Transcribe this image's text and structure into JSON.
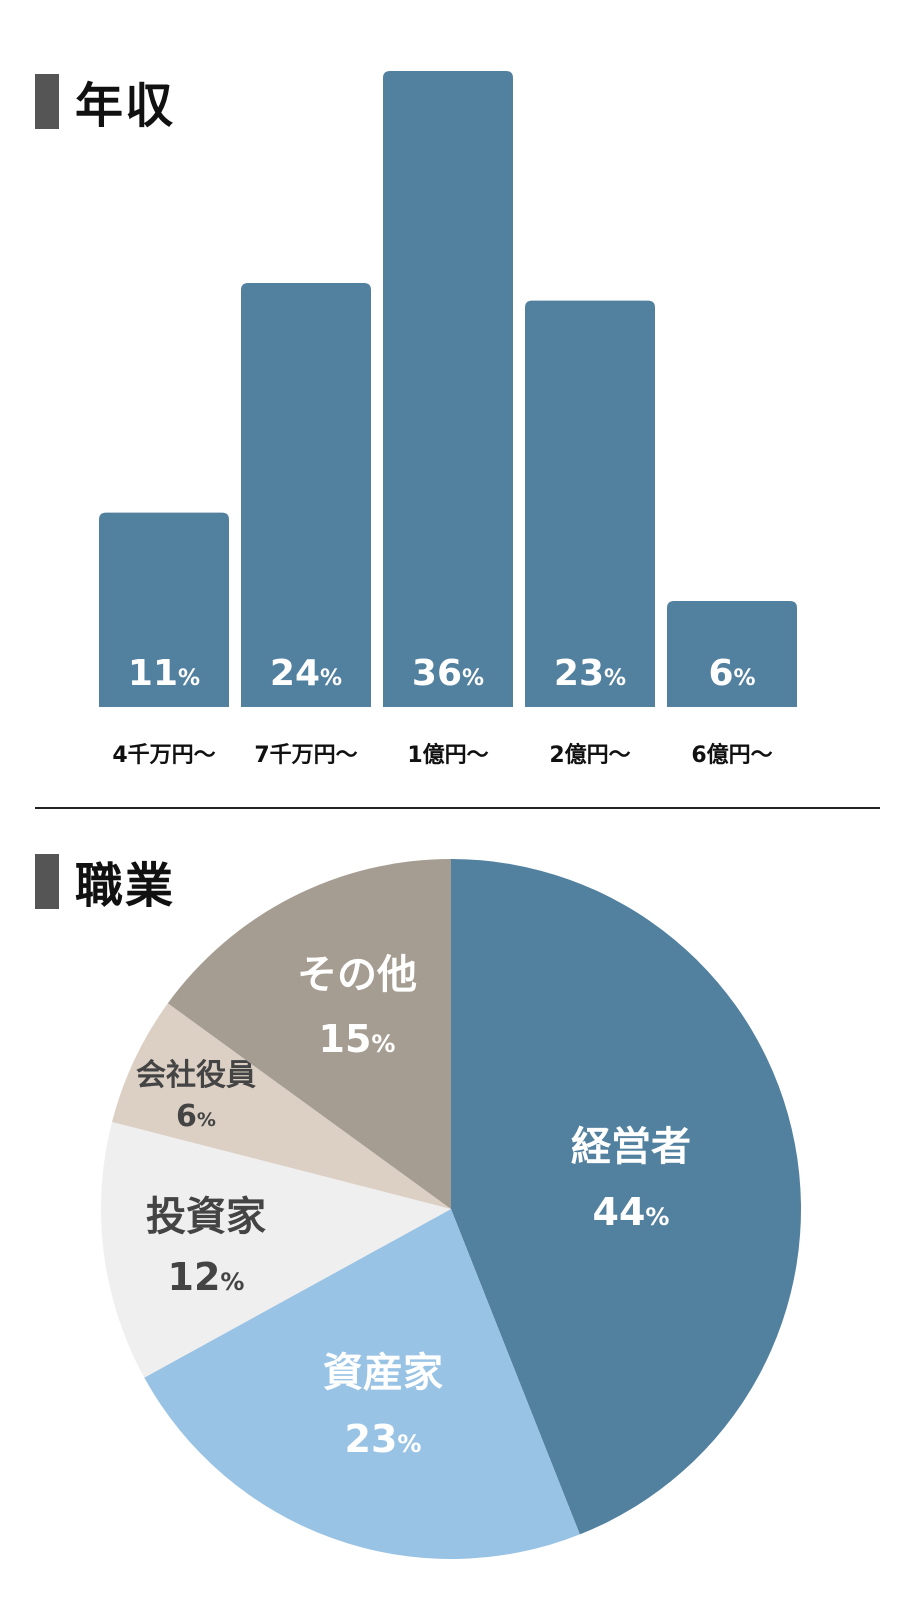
{
  "sections": {
    "income_title": "年収",
    "job_title": "職業"
  },
  "colors": {
    "bar": "#52809f",
    "slices": [
      "#52809f",
      "#99c3e5",
      "#efefef",
      "#dcd0c5",
      "#a59d91"
    ],
    "slice_text": [
      "#ffffff",
      "#ffffff",
      "#444444",
      "#444444",
      "#ffffff"
    ]
  },
  "chart_data": [
    {
      "type": "bar",
      "categories": [
        "4千万円〜",
        "7千万円〜",
        "1億円〜",
        "2億円〜",
        "6億円〜"
      ],
      "values": [
        11,
        24,
        36,
        23,
        6
      ],
      "value_labels": [
        "11",
        "24",
        "36",
        "23",
        "6"
      ],
      "unit": "%",
      "ylim": [
        0,
        36
      ],
      "grid": false
    },
    {
      "type": "pie",
      "labels": [
        "経営者",
        "資産家",
        "投資家",
        "会社役員",
        "その他"
      ],
      "values": [
        44,
        23,
        12,
        6,
        15
      ],
      "value_labels": [
        "44",
        "23",
        "12",
        "6",
        "15"
      ],
      "unit": "%"
    }
  ]
}
